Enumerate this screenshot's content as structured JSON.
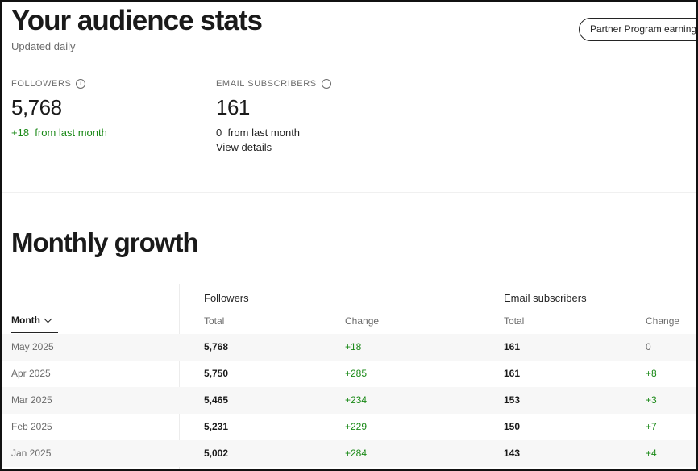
{
  "header": {
    "title": "Your audience stats",
    "subtitle": "Updated daily",
    "partner_button": "Partner Program earnings"
  },
  "stats": {
    "followers": {
      "label": "FOLLOWERS",
      "value": "5,768",
      "change": "+18  from last month"
    },
    "email": {
      "label": "EMAIL SUBSCRIBERS",
      "value": "161",
      "change": "0  from last month",
      "link": "View details"
    },
    "info_icon": "i"
  },
  "growth": {
    "title": "Monthly growth",
    "groups": {
      "followers": "Followers",
      "email": "Email subscribers"
    },
    "columns": {
      "month": "Month",
      "total": "Total",
      "change": "Change"
    },
    "rows": [
      {
        "month": "May 2025",
        "f_total": "5,768",
        "f_change": "+18",
        "e_total": "161",
        "e_change": "0"
      },
      {
        "month": "Apr 2025",
        "f_total": "5,750",
        "f_change": "+285",
        "e_total": "161",
        "e_change": "+8"
      },
      {
        "month": "Mar 2025",
        "f_total": "5,465",
        "f_change": "+234",
        "e_total": "153",
        "e_change": "+3"
      },
      {
        "month": "Feb 2025",
        "f_total": "5,231",
        "f_change": "+229",
        "e_total": "150",
        "e_change": "+7"
      },
      {
        "month": "Jan 2025",
        "f_total": "5,002",
        "f_change": "+284",
        "e_total": "143",
        "e_change": "+4"
      }
    ]
  },
  "colors": {
    "accent_green": "#1a8917",
    "text": "#242424",
    "muted": "#6b6b6b"
  }
}
